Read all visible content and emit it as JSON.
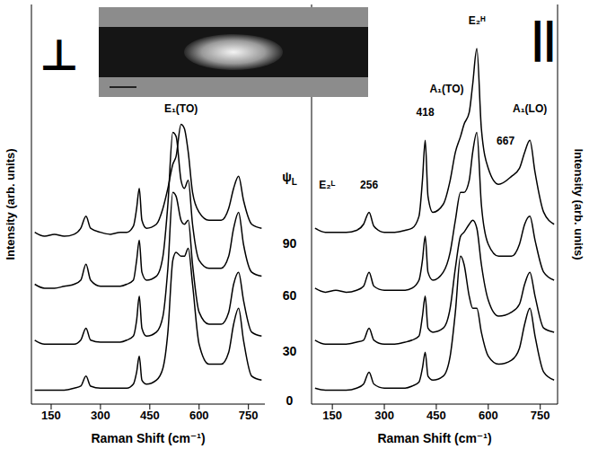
{
  "chart_data": [
    {
      "type": "line",
      "title": "⊥",
      "x_label": "Raman Shift (cm⁻¹)",
      "y_label": "Intensity (arb. units)",
      "xlim": [
        90,
        800
      ],
      "ylim": [
        0,
        10
      ],
      "xticks": [
        150,
        300,
        450,
        600,
        750
      ],
      "yticks": [
        0,
        2,
        4,
        6,
        8,
        10
      ],
      "tick_labels": "x",
      "x": [
        100,
        130,
        160,
        190,
        220,
        240,
        256,
        270,
        300,
        330,
        360,
        380,
        400,
        410,
        418,
        426,
        440,
        470,
        490,
        505,
        520,
        530,
        545,
        555,
        567,
        580,
        600,
        630,
        667,
        690,
        705,
        720,
        735,
        760,
        790
      ],
      "series": [
        {
          "name": "0",
          "color": "#000000",
          "values": [
            0.35,
            0.35,
            0.35,
            0.35,
            0.4,
            0.45,
            0.7,
            0.45,
            0.4,
            0.4,
            0.4,
            0.4,
            0.5,
            0.8,
            1.2,
            0.6,
            0.5,
            0.6,
            0.9,
            1.8,
            3.6,
            3.8,
            3.7,
            3.7,
            3.9,
            3.0,
            1.5,
            1.0,
            1.0,
            1.3,
            2.0,
            2.4,
            1.6,
            0.7,
            0.6
          ]
        },
        {
          "name": "30",
          "color": "#000000",
          "values": [
            1.6,
            1.5,
            1.5,
            1.5,
            1.5,
            1.6,
            1.9,
            1.6,
            1.55,
            1.55,
            1.55,
            1.6,
            1.7,
            2.1,
            2.7,
            1.9,
            1.7,
            1.8,
            2.2,
            3.4,
            5.3,
            5.2,
            4.6,
            4.5,
            4.6,
            3.5,
            2.3,
            2.0,
            2.0,
            2.3,
            3.0,
            3.3,
            2.6,
            1.8,
            1.7
          ]
        },
        {
          "name": "60",
          "color": "#000000",
          "values": [
            3.0,
            2.9,
            2.9,
            2.95,
            3.0,
            3.1,
            3.5,
            3.1,
            2.95,
            2.95,
            2.95,
            3.0,
            3.1,
            3.6,
            4.1,
            3.3,
            3.1,
            3.2,
            3.7,
            5.0,
            6.8,
            6.7,
            5.6,
            5.4,
            5.6,
            4.5,
            3.6,
            3.4,
            3.4,
            3.7,
            4.4,
            4.8,
            4.0,
            3.3,
            3.2
          ]
        },
        {
          "name": "90",
          "color": "#000000",
          "values": [
            4.3,
            4.2,
            4.25,
            4.2,
            4.25,
            4.4,
            4.7,
            4.4,
            4.3,
            4.25,
            4.3,
            4.3,
            4.45,
            4.9,
            5.4,
            4.6,
            4.4,
            4.5,
            4.9,
            5.4,
            6.0,
            6.2,
            7.0,
            6.9,
            6.3,
            5.3,
            4.8,
            4.6,
            4.6,
            4.9,
            5.4,
            5.7,
            5.1,
            4.5,
            4.4
          ]
        }
      ],
      "annotations": [
        {
          "text": "E₁(TO)",
          "x": 545,
          "y": 7.4
        }
      ]
    },
    {
      "type": "line",
      "title": "||",
      "x_label": "Raman Shift (cm⁻¹)",
      "y_label": "Intensity (arb. units)",
      "xlim": [
        90,
        800
      ],
      "ylim": [
        0,
        10
      ],
      "xticks": [
        150,
        300,
        450,
        600,
        750
      ],
      "yticks": [
        0,
        2,
        4,
        6,
        8,
        10
      ],
      "tick_labels": "x",
      "x": [
        100,
        130,
        160,
        190,
        220,
        240,
        256,
        270,
        300,
        330,
        360,
        380,
        400,
        410,
        418,
        426,
        440,
        470,
        490,
        505,
        520,
        530,
        545,
        555,
        567,
        580,
        600,
        630,
        667,
        690,
        705,
        720,
        735,
        760,
        790
      ],
      "series": [
        {
          "name": "0",
          "color": "#000000",
          "values": [
            0.4,
            0.35,
            0.35,
            0.35,
            0.4,
            0.5,
            0.8,
            0.5,
            0.4,
            0.4,
            0.4,
            0.45,
            0.55,
            0.9,
            1.3,
            0.7,
            0.6,
            0.7,
            1.2,
            2.3,
            3.7,
            3.5,
            2.7,
            2.4,
            2.4,
            1.8,
            1.2,
            1.0,
            1.1,
            1.4,
            2.0,
            2.4,
            1.7,
            0.8,
            0.6
          ]
        },
        {
          "name": "30",
          "color": "#000000",
          "values": [
            1.6,
            1.5,
            1.5,
            1.5,
            1.55,
            1.6,
            1.9,
            1.6,
            1.5,
            1.5,
            1.55,
            1.6,
            1.7,
            2.2,
            2.7,
            1.9,
            1.8,
            1.9,
            2.4,
            3.4,
            4.2,
            4.3,
            4.5,
            4.6,
            4.4,
            3.5,
            2.6,
            2.2,
            2.3,
            2.5,
            3.0,
            3.3,
            2.7,
            1.9,
            1.8
          ]
        },
        {
          "name": "60",
          "color": "#000000",
          "values": [
            2.9,
            2.8,
            2.85,
            2.8,
            2.85,
            2.95,
            3.3,
            2.95,
            2.85,
            2.85,
            2.85,
            2.9,
            3.1,
            3.6,
            4.2,
            3.3,
            3.1,
            3.3,
            3.8,
            4.6,
            5.3,
            5.3,
            5.6,
            6.3,
            6.8,
            5.0,
            4.0,
            3.7,
            3.7,
            4.0,
            4.5,
            4.7,
            4.1,
            3.3,
            3.1
          ]
        },
        {
          "name": "90",
          "color": "#000000",
          "values": [
            4.4,
            4.3,
            4.3,
            4.3,
            4.35,
            4.5,
            4.8,
            4.45,
            4.3,
            4.3,
            4.35,
            4.4,
            4.7,
            5.6,
            6.6,
            5.2,
            4.8,
            5.0,
            5.6,
            6.3,
            6.7,
            7.0,
            7.3,
            8.0,
            8.9,
            6.9,
            5.9,
            5.5,
            5.7,
            5.9,
            6.3,
            6.6,
            5.8,
            4.8,
            4.5
          ]
        }
      ],
      "annotations": [
        {
          "text": "E₂ᴸ",
          "x": 135,
          "y": 5.5
        },
        {
          "text": "256",
          "x": 256,
          "y": 5.5
        },
        {
          "text": "418",
          "x": 418,
          "y": 7.3
        },
        {
          "text": "A₁(TO)",
          "x": 480,
          "y": 7.9
        },
        {
          "text": "E₂ᴴ",
          "x": 567,
          "y": 9.6
        },
        {
          "text": "667",
          "x": 650,
          "y": 6.6
        },
        {
          "text": "A₁(LO)",
          "x": 720,
          "y": 7.4
        }
      ]
    }
  ],
  "curve_label": {
    "text": "ψ",
    "subscript": "L"
  }
}
